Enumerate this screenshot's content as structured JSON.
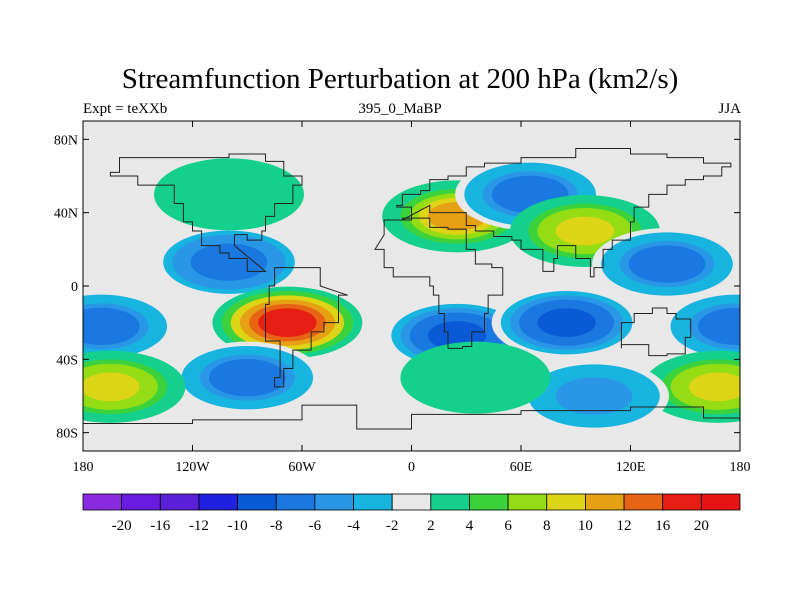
{
  "title": "Streamfunction Perturbation at 200 hPa (km2/s)",
  "subtitle_left": "Expt = teXXb",
  "subtitle_center": "395_0_MaBP",
  "subtitle_right": "JJA",
  "chart_data": {
    "type": "heatmap",
    "title": "Streamfunction Perturbation at 200 hPa (km2/s)",
    "units": "km2/s",
    "xlim": [
      -180,
      180
    ],
    "ylim": [
      -90,
      90
    ],
    "x_ticks": [
      {
        "value": -180,
        "label": "180"
      },
      {
        "value": -120,
        "label": "120W"
      },
      {
        "value": -60,
        "label": "60W"
      },
      {
        "value": 0,
        "label": "0"
      },
      {
        "value": 60,
        "label": "60E"
      },
      {
        "value": 120,
        "label": "120E"
      },
      {
        "value": 180,
        "label": "180"
      }
    ],
    "y_ticks": [
      {
        "value": 80,
        "label": "80N"
      },
      {
        "value": 40,
        "label": "40N"
      },
      {
        "value": 0,
        "label": "0"
      },
      {
        "value": -40,
        "label": "40S"
      },
      {
        "value": -80,
        "label": "80S"
      }
    ],
    "colorbar": {
      "levels": [
        -20,
        -16,
        -12,
        -10,
        -8,
        -6,
        -4,
        -2,
        2,
        4,
        6,
        8,
        10,
        12,
        16,
        20
      ],
      "labels": [
        "-20",
        "-16",
        "-12",
        "-10",
        "-8",
        "-6",
        "-4",
        "-2",
        "2",
        "4",
        "6",
        "8",
        "10",
        "12",
        "16",
        "20"
      ],
      "colors": [
        "#8a2be2",
        "#6a1be0",
        "#5a20d8",
        "#2020e0",
        "#0a5ad8",
        "#1a78e0",
        "#2a96e6",
        "#18b4e0",
        "#e8e8e8",
        "#14d08c",
        "#3cd23c",
        "#94dc14",
        "#dcd414",
        "#e6a014",
        "#e66414",
        "#e61e14",
        "#e61414"
      ]
    },
    "field_cells": [
      {
        "lon": -170,
        "lat": -22,
        "value": -8
      },
      {
        "lon": -100,
        "lat": 13,
        "value": -9
      },
      {
        "lon": -68,
        "lat": -20,
        "value": 20
      },
      {
        "lon": -90,
        "lat": -50,
        "value": -8
      },
      {
        "lon": -165,
        "lat": -55,
        "value": 10
      },
      {
        "lon": 25,
        "lat": 38,
        "value": 12
      },
      {
        "lon": 25,
        "lat": -27,
        "value": -11
      },
      {
        "lon": 85,
        "lat": -20,
        "value": -11
      },
      {
        "lon": 65,
        "lat": 50,
        "value": -8
      },
      {
        "lon": 95,
        "lat": 30,
        "value": 10
      },
      {
        "lon": 140,
        "lat": 12,
        "value": -8
      },
      {
        "lon": 178,
        "lat": -22,
        "value": -8
      },
      {
        "lon": 168,
        "lat": -55,
        "value": 10
      },
      {
        "lon": 100,
        "lat": -60,
        "value": -6
      },
      {
        "lon": 35,
        "lat": -50,
        "value": 4
      },
      {
        "lon": -100,
        "lat": 50,
        "value": 4
      }
    ]
  }
}
